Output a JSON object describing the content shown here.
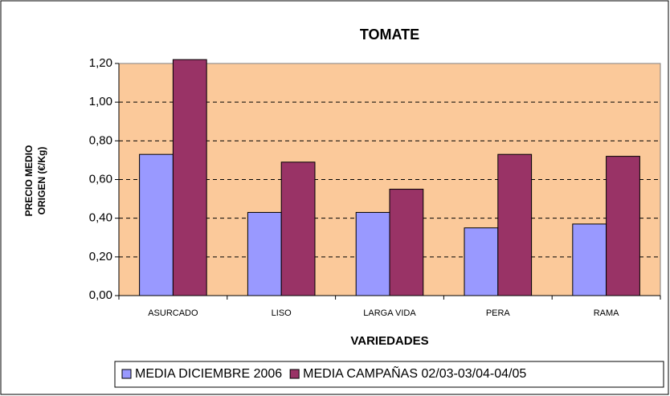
{
  "chart_data": {
    "type": "bar",
    "title": "TOMATE",
    "y_label": [
      "PRECIO MEDIO",
      "ORIGEN (€/Kg)"
    ],
    "x_label": "VARIEDADES",
    "categories": [
      "ASURCADO",
      "LISO",
      "LARGA VIDA",
      "PERA",
      "RAMA"
    ],
    "series": [
      {
        "name": "MEDIA DICIEMBRE 2006",
        "color": "#9999ff",
        "values": [
          0.73,
          0.43,
          0.43,
          0.35,
          0.37
        ]
      },
      {
        "name": "MEDIA CAMPAÑAS 02/03-03/04-04/05",
        "color": "#993366",
        "values": [
          1.22,
          0.69,
          0.55,
          0.73,
          0.72
        ]
      }
    ],
    "ylim": [
      0,
      1.2
    ],
    "yticks": [
      {
        "value": 0,
        "label": "0,00"
      },
      {
        "value": 0.2,
        "label": "0,20"
      },
      {
        "value": 0.4,
        "label": "0,40"
      },
      {
        "value": 0.6,
        "label": "0,60"
      },
      {
        "value": 0.8,
        "label": "0,80"
      },
      {
        "value": 1.0,
        "label": "1,00"
      },
      {
        "value": 1.2,
        "label": "1,20"
      }
    ],
    "grid": true,
    "legend": "bottom",
    "plot_background": "#fbc99a"
  }
}
